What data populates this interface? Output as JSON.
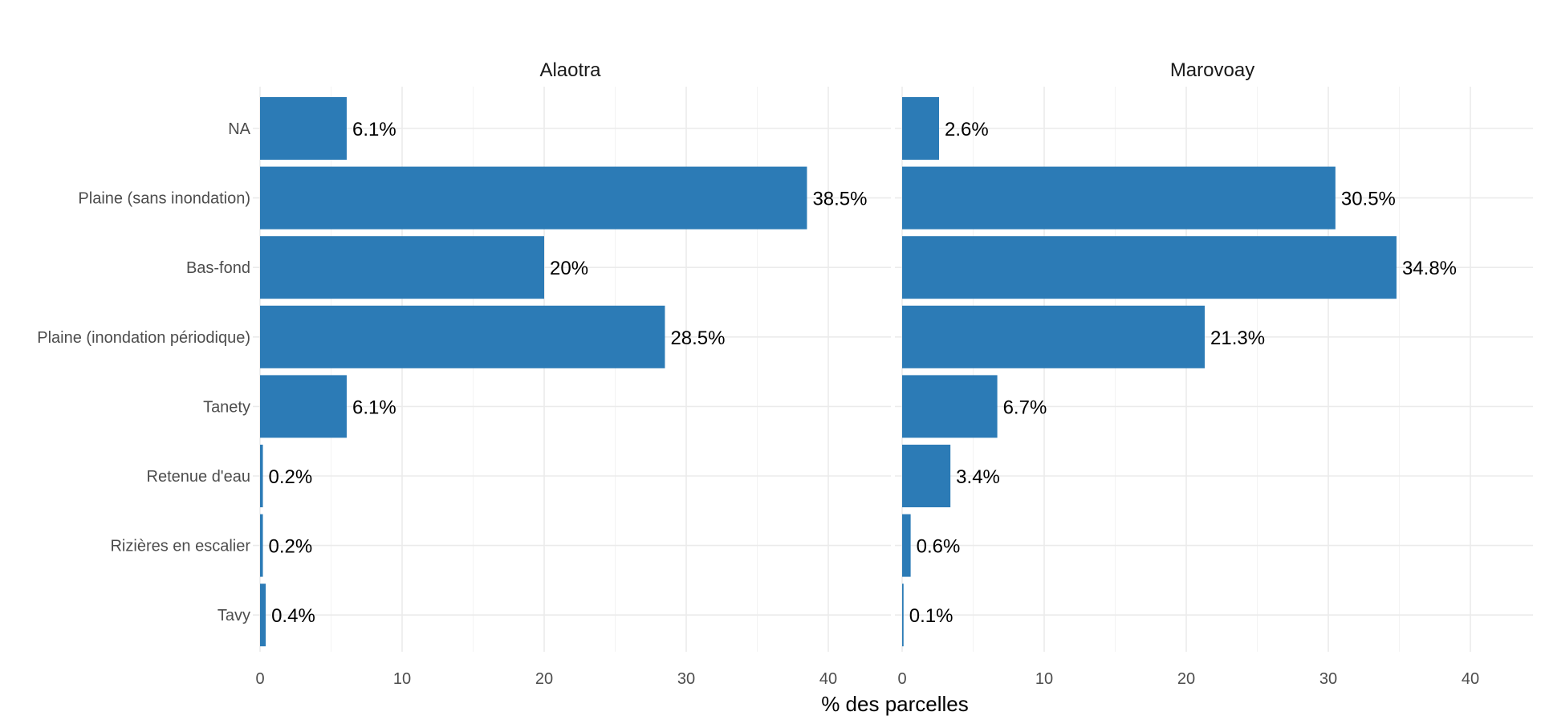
{
  "chart_data": {
    "type": "bar",
    "orientation": "horizontal",
    "xlabel": "% des parcelles",
    "ylabel": "",
    "xlim": [
      0,
      44
    ],
    "x_ticks": [
      0,
      10,
      20,
      30,
      40
    ],
    "grid": true,
    "bar_color": "#2c7bb6",
    "categories": [
      "NA",
      "Plaine (sans inondation)",
      "Bas-fond",
      "Plaine (inondation périodique)",
      "Tanety",
      "Retenue d'eau",
      "Rizières en escalier",
      "Tavy"
    ],
    "panels": [
      {
        "title": "Alaotra",
        "values": [
          6.1,
          38.5,
          20.0,
          28.5,
          6.1,
          0.2,
          0.2,
          0.4
        ],
        "labels": [
          "6.1%",
          "38.5%",
          "20%",
          "28.5%",
          "6.1%",
          "0.2%",
          "0.2%",
          "0.4%"
        ]
      },
      {
        "title": "Marovoay",
        "values": [
          2.6,
          30.5,
          34.8,
          21.3,
          6.7,
          3.4,
          0.6,
          0.1
        ],
        "labels": [
          "2.6%",
          "30.5%",
          "34.8%",
          "21.3%",
          "6.7%",
          "3.4%",
          "0.6%",
          "0.1%"
        ]
      }
    ]
  }
}
